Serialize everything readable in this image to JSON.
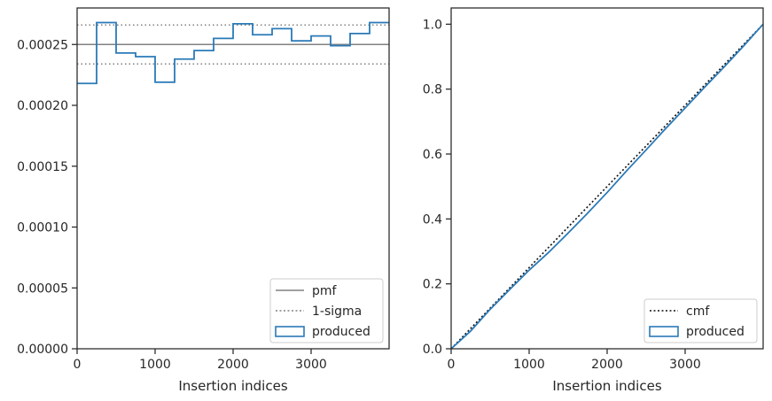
{
  "chart_data": [
    {
      "type": "step",
      "title": "",
      "xlabel": "Insertion indices",
      "ylabel": "",
      "xlim": [
        0,
        4000
      ],
      "ylim": [
        0,
        0.00028
      ],
      "xticks": [
        0,
        1000,
        2000,
        3000
      ],
      "xtick_labels": [
        "0",
        "1000",
        "2000",
        "3000"
      ],
      "yticks": [
        0,
        5e-05,
        0.0001,
        0.00015,
        0.0002,
        0.00025
      ],
      "ytick_labels": [
        "0.00000",
        "0.00005",
        "0.00010",
        "0.00015",
        "0.00020",
        "0.00025"
      ],
      "legend_position": "lower-right",
      "reference_lines": [
        {
          "name": "pmf",
          "y": 0.00025,
          "style": "solid",
          "color": "#808080"
        },
        {
          "name": "1-sigma",
          "y": 0.000266,
          "style": "dotted",
          "color": "#808080"
        },
        {
          "name": "1-sigma",
          "y": 0.000234,
          "style": "dotted",
          "color": "#808080",
          "legend": false
        }
      ],
      "series": [
        {
          "name": "produced",
          "color": "#2a7ab8",
          "bin_edges": [
            0,
            250,
            500,
            750,
            1000,
            1250,
            1500,
            1750,
            2000,
            2250,
            2500,
            2750,
            3000,
            3250,
            3500,
            3750,
            4000
          ],
          "values": [
            0.000218,
            0.000268,
            0.000243,
            0.00024,
            0.000219,
            0.000238,
            0.000245,
            0.000255,
            0.000267,
            0.000258,
            0.000263,
            0.000253,
            0.000257,
            0.000249,
            0.000259,
            0.000268
          ]
        }
      ]
    },
    {
      "type": "line",
      "title": "",
      "xlabel": "Insertion indices",
      "ylabel": "",
      "xlim": [
        0,
        4000
      ],
      "ylim": [
        0,
        1.05
      ],
      "xticks": [
        0,
        1000,
        2000,
        3000
      ],
      "xtick_labels": [
        "0",
        "1000",
        "2000",
        "3000"
      ],
      "yticks": [
        0,
        0.2,
        0.4,
        0.6,
        0.8,
        1.0
      ],
      "ytick_labels": [
        "0.0",
        "0.2",
        "0.4",
        "0.6",
        "0.8",
        "1.0"
      ],
      "legend_position": "lower-right",
      "series": [
        {
          "name": "cmf",
          "style": "dotted",
          "color": "#111111",
          "x": [
            0,
            4000
          ],
          "y": [
            0,
            1.0
          ]
        },
        {
          "name": "produced",
          "style": "solid",
          "color": "#2a7ab8",
          "x": [
            0,
            250,
            500,
            750,
            1000,
            1250,
            1500,
            1750,
            2000,
            2250,
            2500,
            2750,
            3000,
            3250,
            3500,
            3750,
            4000
          ],
          "y": [
            0,
            0.0545,
            0.1215,
            0.1823,
            0.2423,
            0.297,
            0.3565,
            0.4178,
            0.4815,
            0.5483,
            0.6128,
            0.6785,
            0.7418,
            0.806,
            0.8683,
            0.933,
            1.0
          ]
        }
      ]
    }
  ]
}
